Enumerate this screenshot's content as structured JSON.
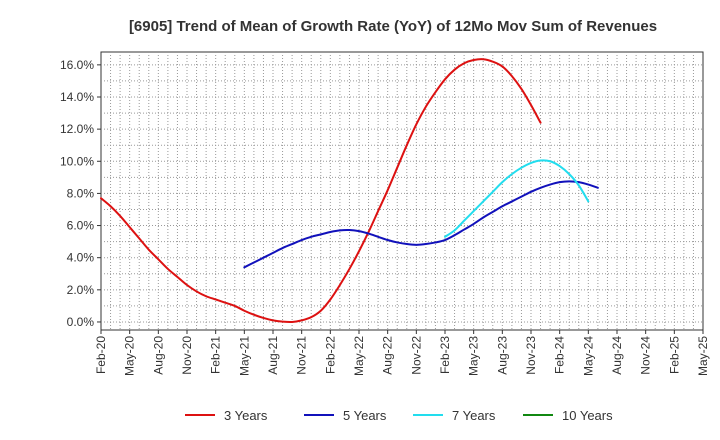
{
  "chart_data": {
    "type": "line",
    "title": "[6905]  Trend of Mean of Growth Rate (YoY) of 12Mo Mov Sum of Revenues",
    "xlabel": "",
    "ylabel": "",
    "ylim": [
      -0.5,
      16.8
    ],
    "y_ticks": [
      0,
      2,
      4,
      6,
      8,
      10,
      12,
      14,
      16
    ],
    "y_tick_labels": [
      "0.0%",
      "2.0%",
      "4.0%",
      "6.0%",
      "8.0%",
      "10.0%",
      "12.0%",
      "14.0%",
      "16.0%"
    ],
    "x_tick_labels": [
      "Feb-20",
      "May-20",
      "Aug-20",
      "Nov-20",
      "Feb-21",
      "May-21",
      "Aug-21",
      "Nov-21",
      "Feb-22",
      "May-22",
      "Aug-22",
      "Nov-22",
      "Feb-23",
      "May-23",
      "Aug-23",
      "Nov-23",
      "Feb-24",
      "May-24",
      "Aug-24",
      "Nov-24",
      "Feb-25",
      "May-25"
    ],
    "grid": true,
    "legend_position": "bottom",
    "series": [
      {
        "name": "3 Years",
        "color": "#dd1111",
        "start_index": 0,
        "values": [
          7.7,
          7.2,
          6.6,
          5.9,
          5.2,
          4.5,
          3.9,
          3.3,
          2.8,
          2.3,
          1.9,
          1.6,
          1.4,
          1.2,
          1.0,
          0.7,
          0.45,
          0.25,
          0.1,
          0.02,
          0.0,
          0.1,
          0.3,
          0.7,
          1.4,
          2.3,
          3.3,
          4.4,
          5.6,
          6.9,
          8.2,
          9.6,
          11.0,
          12.3,
          13.4,
          14.3,
          15.1,
          15.7,
          16.1,
          16.3,
          16.35,
          16.2,
          15.9,
          15.3,
          14.5,
          13.5,
          12.4
        ]
      },
      {
        "name": "5 Years",
        "color": "#1111bb",
        "start_index": 15,
        "values": [
          3.4,
          3.7,
          4.0,
          4.3,
          4.6,
          4.85,
          5.1,
          5.3,
          5.45,
          5.6,
          5.7,
          5.72,
          5.65,
          5.5,
          5.3,
          5.1,
          4.95,
          4.85,
          4.8,
          4.85,
          4.95,
          5.1,
          5.4,
          5.75,
          6.1,
          6.5,
          6.85,
          7.2,
          7.5,
          7.8,
          8.1,
          8.35,
          8.55,
          8.7,
          8.75,
          8.7,
          8.55,
          8.35
        ]
      },
      {
        "name": "7 Years",
        "color": "#22ddee",
        "start_index": 36,
        "values": [
          5.3,
          5.7,
          6.3,
          6.9,
          7.5,
          8.1,
          8.7,
          9.2,
          9.6,
          9.9,
          10.05,
          10.0,
          9.7,
          9.2,
          8.5,
          7.5
        ]
      },
      {
        "name": "10 Years",
        "color": "#118811",
        "start_index": 0,
        "values": []
      }
    ]
  }
}
